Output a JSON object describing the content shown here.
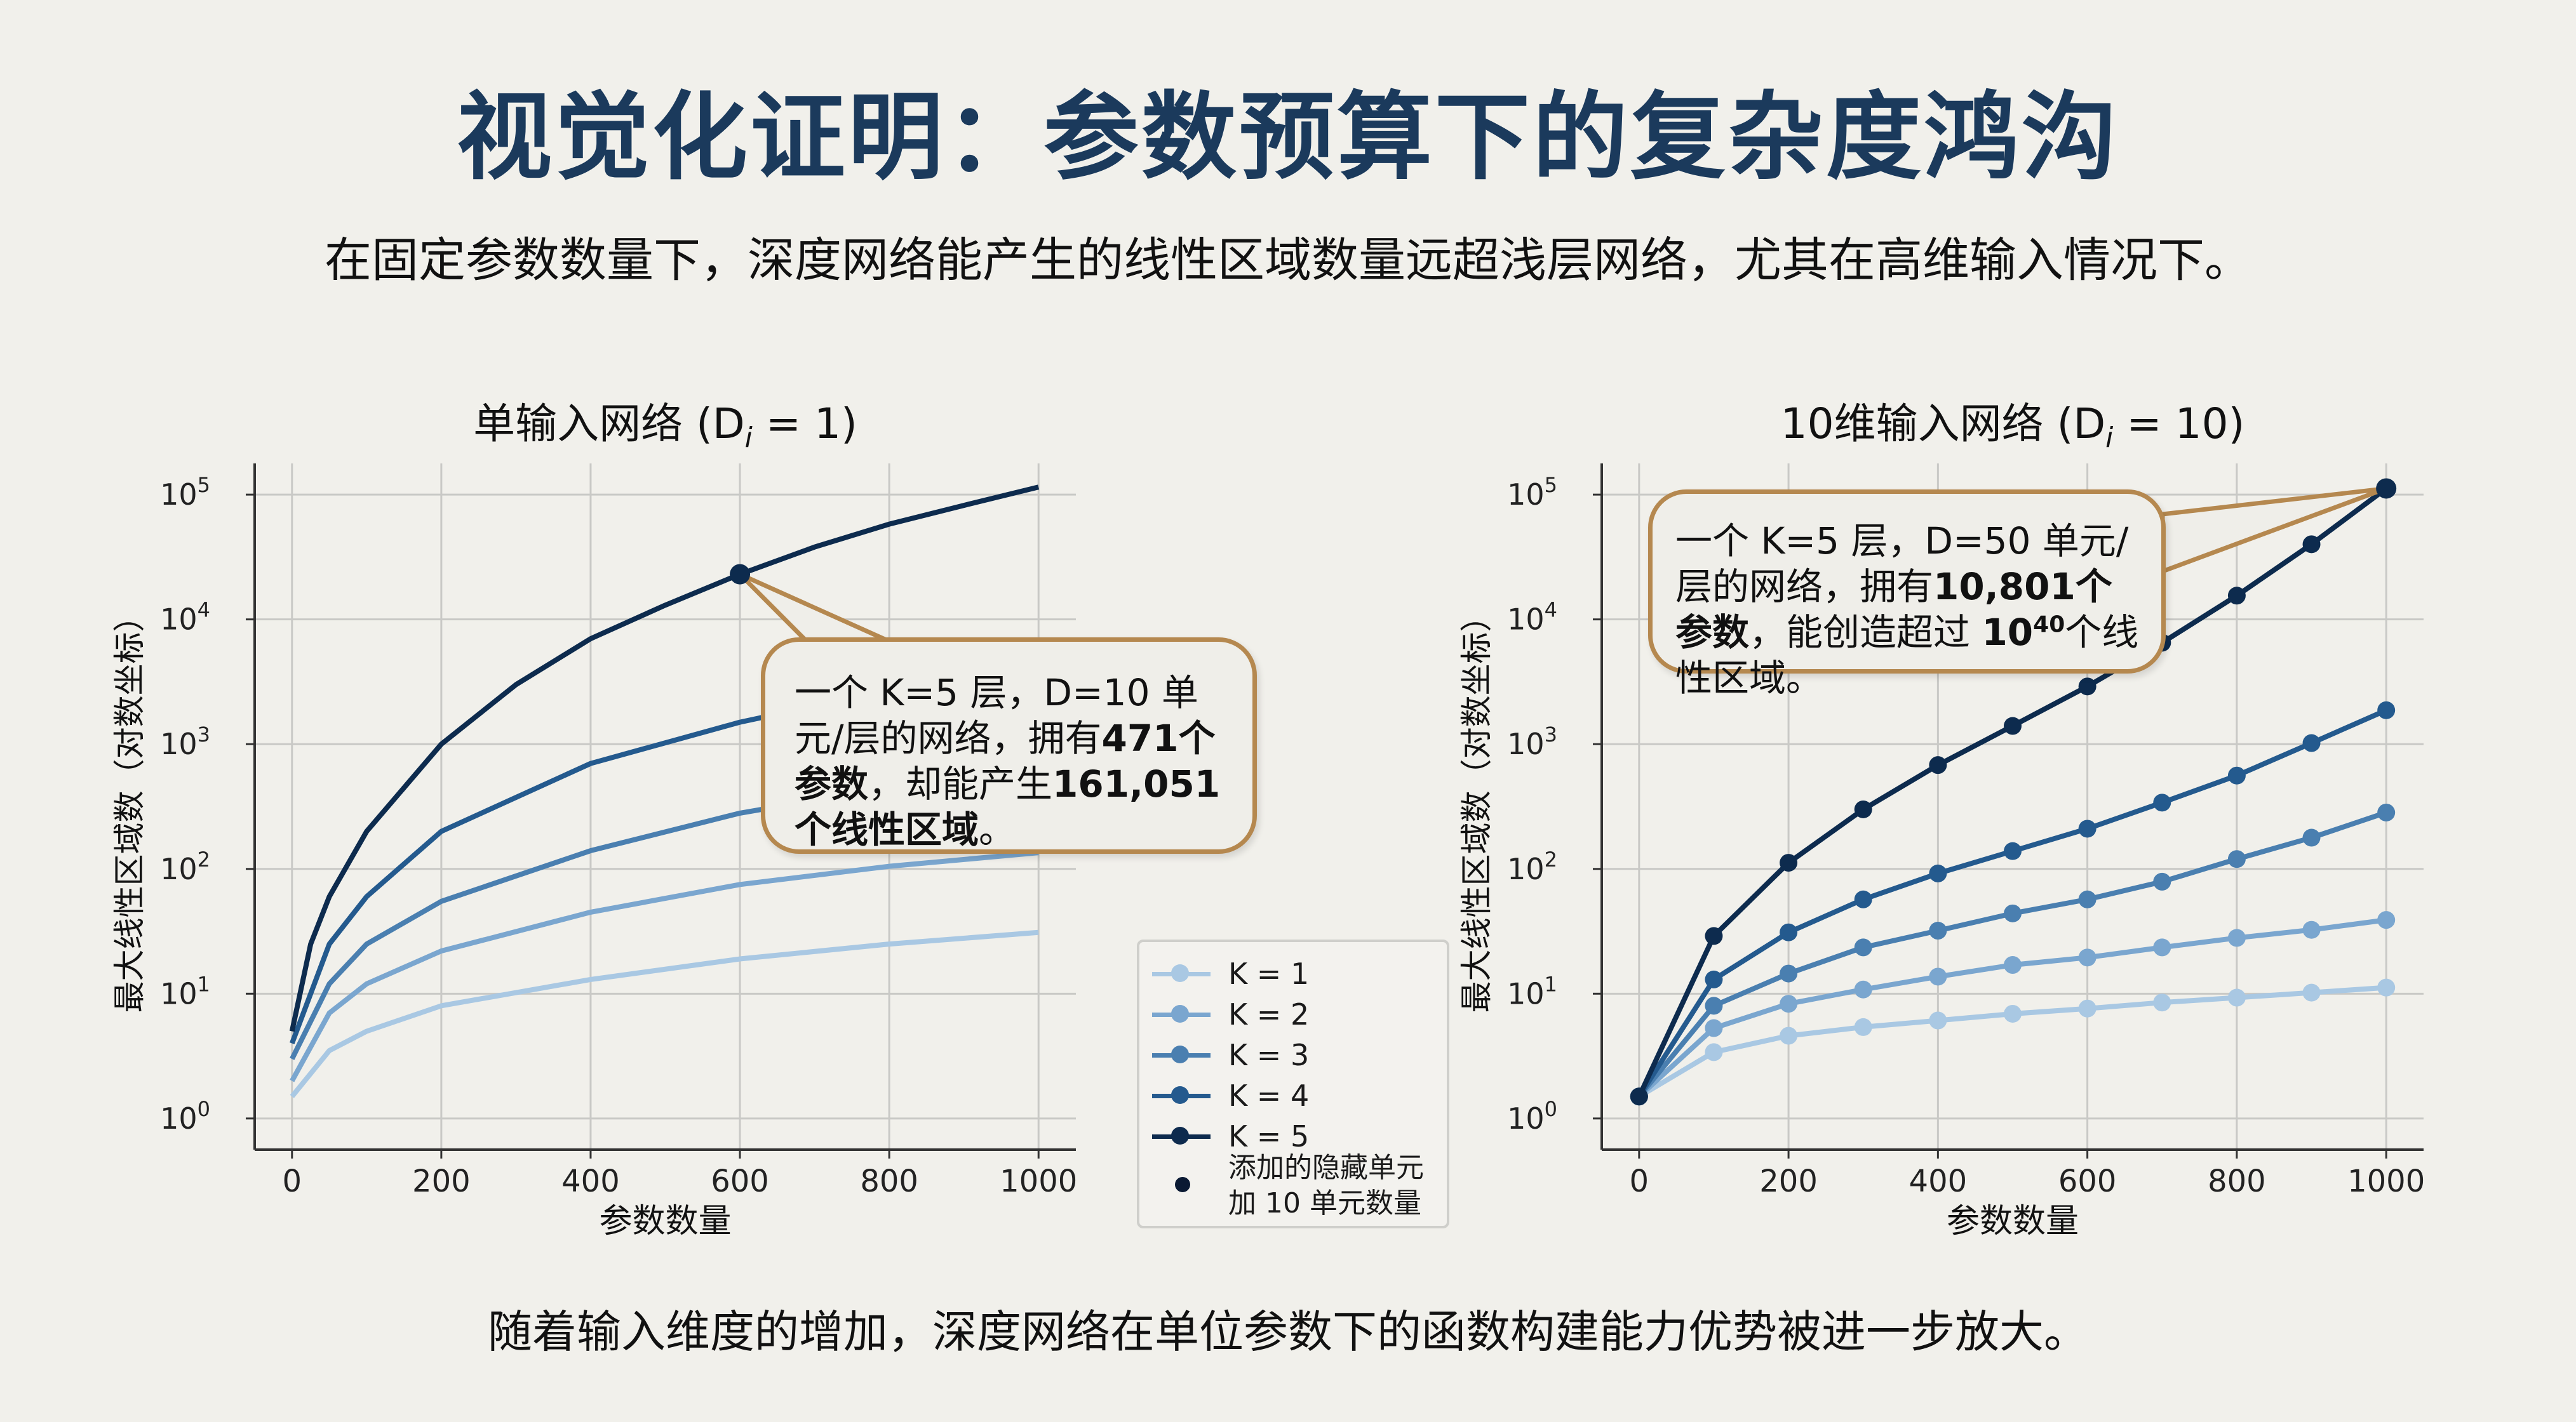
{
  "header": {
    "title": "视觉化证明：参数预算下的复杂度鸿沟",
    "subtitle": "在固定参数数量下，深度网络能产生的线性区域数量远超浅层网络，尤其在高维输入情况下。"
  },
  "footer": "随着输入维度的增加，深度网络在单位参数下的函数构建能力优势被进一步放大。",
  "colors": {
    "background": "#f1f0eb",
    "title": "#1b3a5c",
    "callout_border": "#b5884f",
    "K1": "#a9c8e3",
    "K2": "#7aa6cf",
    "K3": "#4a7fb0",
    "K4": "#245a8e",
    "K5": "#0d2b4e"
  },
  "legend": {
    "items": [
      "K = 1",
      "K = 2",
      "K = 3",
      "K = 4",
      "K = 5"
    ],
    "marker_label_line1": "添加的隐藏单元",
    "marker_label_line2": "加 10 单元数量"
  },
  "callouts": {
    "left": [
      {
        "t": "一个 K=5 层，D=10 单元/层的网络，拥有"
      },
      {
        "t": "471个参数",
        "b": true
      },
      {
        "t": "，却能产生"
      },
      {
        "t": "161,051个线性区域",
        "b": true
      },
      {
        "t": "。"
      }
    ],
    "right": [
      {
        "t": "一个 K=5 层，D=50 单元/层的网络，拥有"
      },
      {
        "t": "10,801个参数",
        "b": true
      },
      {
        "t": "，能创造超过 "
      },
      {
        "t": "10",
        "b": true
      },
      {
        "t": "40",
        "b": true,
        "sup": true
      },
      {
        "t": "个线性区域。"
      }
    ]
  },
  "chart_data": [
    {
      "type": "line",
      "title": "单输入网络 (D",
      "title_sub": "i",
      "title_tail": " = 1)",
      "xlabel": "参数数量",
      "ylabel": "最大线性区域数（对数坐标）",
      "yscale": "log",
      "xlim": [
        -50,
        1050
      ],
      "ylim_log10": [
        -0.25,
        5.25
      ],
      "xticks": [
        0,
        200,
        400,
        600,
        800,
        1000
      ],
      "yticks_exp": [
        0,
        1,
        2,
        3,
        4,
        5
      ],
      "grid": true,
      "markers": false,
      "series": [
        {
          "name": "K = 1",
          "x": [
            0,
            50,
            100,
            200,
            400,
            600,
            800,
            1000
          ],
          "y": [
            1.5,
            3.5,
            5,
            8,
            13,
            19,
            25,
            31
          ]
        },
        {
          "name": "K = 2",
          "x": [
            0,
            50,
            100,
            200,
            400,
            600,
            800,
            1000
          ],
          "y": [
            2,
            7,
            12,
            22,
            45,
            75,
            105,
            135
          ]
        },
        {
          "name": "K = 3",
          "x": [
            0,
            50,
            100,
            200,
            400,
            600,
            800,
            1000
          ],
          "y": [
            3,
            12,
            25,
            55,
            140,
            280,
            450,
            650
          ]
        },
        {
          "name": "K = 4",
          "x": [
            0,
            50,
            100,
            200,
            400,
            600,
            800,
            1000
          ],
          "y": [
            4,
            25,
            60,
            200,
            700,
            1500,
            2700,
            4200
          ]
        },
        {
          "name": "K = 5",
          "x": [
            0,
            25,
            50,
            100,
            200,
            300,
            400,
            500,
            600,
            700,
            800,
            900,
            1000
          ],
          "y": [
            5,
            25,
            60,
            200,
            1000,
            3000,
            7000,
            13000,
            23000,
            38000,
            58000,
            82000,
            115000
          ]
        }
      ],
      "highlight_point": {
        "x": 600,
        "y": 23000
      }
    },
    {
      "type": "line",
      "title": "10维输入网络 (D",
      "title_sub": "i",
      "title_tail": " = 10)",
      "xlabel": "参数数量",
      "ylabel": "最大线性区域数（对数坐标）",
      "yscale": "log",
      "xlim": [
        -50,
        1050
      ],
      "ylim_log10": [
        -0.25,
        5.25
      ],
      "xticks": [
        0,
        200,
        400,
        600,
        800,
        1000
      ],
      "yticks_exp": [
        0,
        1,
        2,
        3,
        4,
        5
      ],
      "grid": true,
      "markers": true,
      "series": [
        {
          "name": "K = 1",
          "x": [
            0,
            100,
            200,
            300,
            400,
            500,
            600,
            700,
            800,
            900,
            1000
          ],
          "y": [
            1.5,
            3.4,
            4.6,
            5.4,
            6.1,
            6.9,
            7.6,
            8.5,
            9.3,
            10.2,
            11.2
          ]
        },
        {
          "name": "K = 2",
          "x": [
            0,
            100,
            200,
            300,
            400,
            500,
            600,
            700,
            800,
            900,
            1000
          ],
          "y": [
            1.5,
            5.3,
            8.3,
            10.8,
            13.7,
            17,
            19.5,
            23.5,
            28,
            32.5,
            39
          ]
        },
        {
          "name": "K = 3",
          "x": [
            0,
            100,
            200,
            300,
            400,
            500,
            600,
            700,
            800,
            900,
            1000
          ],
          "y": [
            1.5,
            8,
            14.5,
            23.5,
            32,
            44,
            57,
            79,
            120,
            178,
            283
          ]
        },
        {
          "name": "K = 4",
          "x": [
            0,
            100,
            200,
            300,
            400,
            500,
            600,
            700,
            800,
            900,
            1000
          ],
          "y": [
            1.5,
            13,
            31,
            57,
            92,
            139,
            210,
            340,
            560,
            1020,
            1870
          ]
        },
        {
          "name": "K = 5",
          "x": [
            0,
            100,
            200,
            300,
            400,
            500,
            600,
            700,
            800,
            900,
            1000
          ],
          "y": [
            1.5,
            29,
            112,
            300,
            680,
            1400,
            2900,
            6500,
            15500,
            40000,
            112000
          ]
        }
      ],
      "highlight_point": {
        "x": 1000,
        "y": 112000
      }
    }
  ]
}
